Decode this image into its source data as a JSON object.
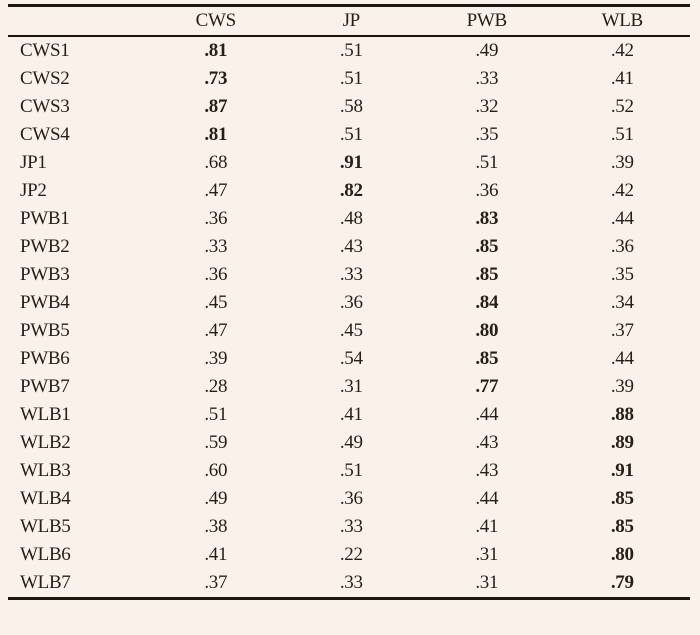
{
  "colors": {
    "page_background": "#faf2ea",
    "rule": "#191713",
    "text": "#241f1a"
  },
  "table": {
    "header": [
      "",
      "CWS",
      "JP",
      "PWB",
      "WLB"
    ],
    "rows": [
      {
        "label": "CWS1",
        "values": [
          ".81",
          ".51",
          ".49",
          ".42"
        ],
        "bold_index": 0
      },
      {
        "label": "CWS2",
        "values": [
          ".73",
          ".51",
          ".33",
          ".41"
        ],
        "bold_index": 0
      },
      {
        "label": "CWS3",
        "values": [
          ".87",
          ".58",
          ".32",
          ".52"
        ],
        "bold_index": 0
      },
      {
        "label": "CWS4",
        "values": [
          ".81",
          ".51",
          ".35",
          ".51"
        ],
        "bold_index": 0
      },
      {
        "label": "JP1",
        "values": [
          ".68",
          ".91",
          ".51",
          ".39"
        ],
        "bold_index": 1
      },
      {
        "label": "JP2",
        "values": [
          ".47",
          ".82",
          ".36",
          ".42"
        ],
        "bold_index": 1
      },
      {
        "label": "PWB1",
        "values": [
          ".36",
          ".48",
          ".83",
          ".44"
        ],
        "bold_index": 2
      },
      {
        "label": "PWB2",
        "values": [
          ".33",
          ".43",
          ".85",
          ".36"
        ],
        "bold_index": 2
      },
      {
        "label": "PWB3",
        "values": [
          ".36",
          ".33",
          ".85",
          ".35"
        ],
        "bold_index": 2
      },
      {
        "label": "PWB4",
        "values": [
          ".45",
          ".36",
          ".84",
          ".34"
        ],
        "bold_index": 2
      },
      {
        "label": "PWB5",
        "values": [
          ".47",
          ".45",
          ".80",
          ".37"
        ],
        "bold_index": 2
      },
      {
        "label": "PWB6",
        "values": [
          ".39",
          ".54",
          ".85",
          ".44"
        ],
        "bold_index": 2
      },
      {
        "label": "PWB7",
        "values": [
          ".28",
          ".31",
          ".77",
          ".39"
        ],
        "bold_index": 2
      },
      {
        "label": "WLB1",
        "values": [
          ".51",
          ".41",
          ".44",
          ".88"
        ],
        "bold_index": 3
      },
      {
        "label": "WLB2",
        "values": [
          ".59",
          ".49",
          ".43",
          ".89"
        ],
        "bold_index": 3
      },
      {
        "label": "WLB3",
        "values": [
          ".60",
          ".51",
          ".43",
          ".91"
        ],
        "bold_index": 3
      },
      {
        "label": "WLB4",
        "values": [
          ".49",
          ".36",
          ".44",
          ".85"
        ],
        "bold_index": 3
      },
      {
        "label": "WLB5",
        "values": [
          ".38",
          ".33",
          ".41",
          ".85"
        ],
        "bold_index": 3
      },
      {
        "label": "WLB6",
        "values": [
          ".41",
          ".22",
          ".31",
          ".80"
        ],
        "bold_index": 3
      },
      {
        "label": "WLB7",
        "values": [
          ".37",
          ".33",
          ".31",
          ".79"
        ],
        "bold_index": 3
      }
    ]
  }
}
